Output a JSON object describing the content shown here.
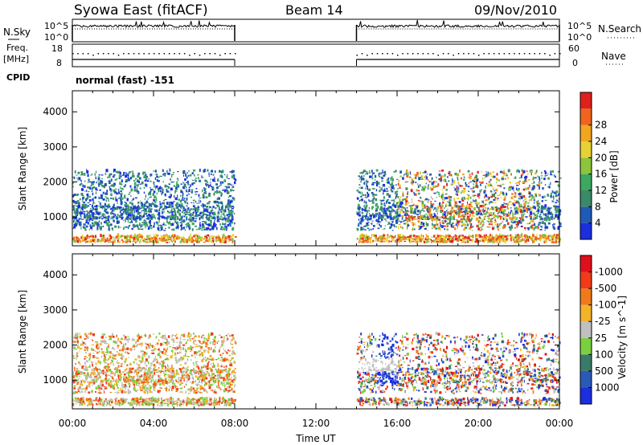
{
  "header": {
    "station": "Syowa East (fitACF)",
    "beam": "Beam 14",
    "date": "09/Nov/2010"
  },
  "status_panels": {
    "left_labels": [
      "N.Sky",
      "Freq.",
      "[MHz]",
      "CPID"
    ],
    "right_labels": [
      "N.Search",
      "Nave"
    ],
    "nsky_ticks": [
      "10^5",
      "10^0"
    ],
    "nsearch_ticks": [
      "10^5",
      "10^0"
    ],
    "freq_ticks": [
      "18",
      "8"
    ],
    "nave_ticks": [
      "60",
      "0"
    ],
    "cpid_text": "normal (fast) -151"
  },
  "chart_data": [
    {
      "type": "heatmap",
      "panel": "power",
      "xlabel": "Time UT",
      "ylabel": "Slant Range [km]",
      "x_ticks": [
        "00:00",
        "04:00",
        "08:00",
        "12:00",
        "16:00",
        "20:00",
        "00:00"
      ],
      "x_range_hours": [
        0,
        24
      ],
      "y_ticks": [
        1000,
        2000,
        3000,
        4000
      ],
      "y_range_km": [
        180,
        4600
      ],
      "colorbar_label": "Power [dB]",
      "colorbar_ticks": [
        4,
        8,
        12,
        16,
        20,
        24,
        28
      ],
      "colorbar_colors": [
        "#1b2ee0",
        "#1f5bb5",
        "#3a8a6a",
        "#3ca860",
        "#8cc43c",
        "#e6d234",
        "#f2a61e",
        "#f0641e",
        "#e0201c"
      ],
      "data_intervals_hours": [
        [
          0,
          8
        ],
        [
          14,
          24
        ]
      ],
      "echo_ranges_km": [
        [
          250,
          2300
        ]
      ]
    },
    {
      "type": "heatmap",
      "panel": "velocity",
      "xlabel": "Time UT",
      "ylabel": "Slant Range [km]",
      "x_ticks": [
        "00:00",
        "04:00",
        "08:00",
        "12:00",
        "16:00",
        "20:00",
        "00:00"
      ],
      "x_range_hours": [
        0,
        24
      ],
      "y_ticks": [
        1000,
        2000,
        3000,
        4000
      ],
      "y_range_km": [
        180,
        4600
      ],
      "colorbar_label": "Velocity [m s^-1]",
      "colorbar_ticks": [
        "1000",
        "500",
        "100",
        "25",
        "-25",
        "-100",
        "-500",
        "-1000"
      ],
      "colorbar_colors": [
        "#1b2ee0",
        "#2a5ab8",
        "#3a7a6a",
        "#7ad040",
        "#c0c0c0",
        "#f2b22a",
        "#f07a1a",
        "#f03a1a",
        "#e0101a"
      ],
      "data_intervals_hours": [
        [
          0,
          8
        ],
        [
          14,
          24
        ]
      ],
      "echo_ranges_km": [
        [
          250,
          2300
        ]
      ]
    }
  ]
}
